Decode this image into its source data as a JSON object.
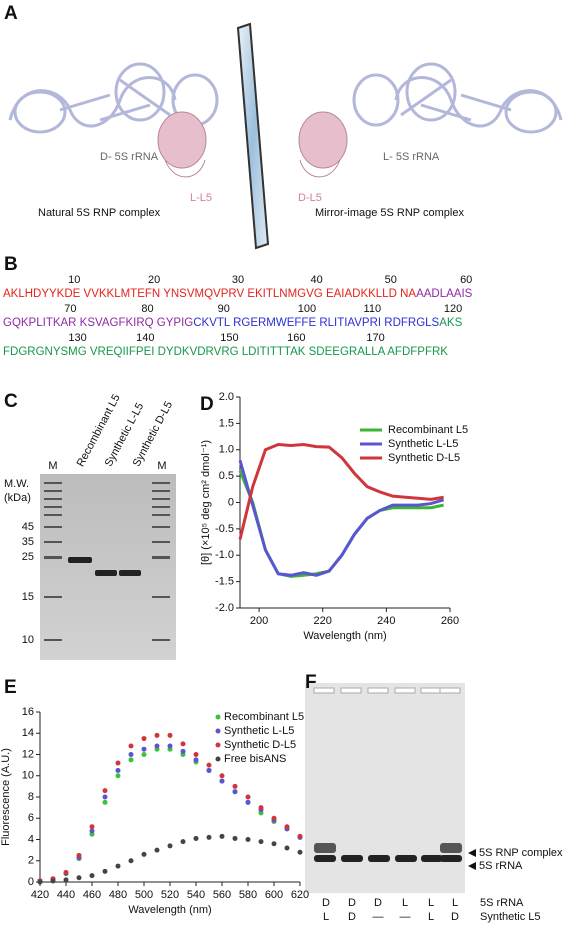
{
  "panel_labels": [
    "A",
    "B",
    "C",
    "D",
    "E",
    "F"
  ],
  "panel_a": {
    "left_rna": "D- 5S rRNA",
    "left_protein": "L-L5",
    "left_caption": "Natural 5S RNP complex",
    "right_rna": "L- 5S rRNA",
    "right_protein": "D-L5",
    "right_caption": "Mirror-image 5S RNP complex"
  },
  "sequence": {
    "rows": [
      {
        "numbers": [
          10,
          20,
          30,
          40,
          50,
          60
        ],
        "segments": [
          {
            "text": "AKLHDYYKDE VVKKLMTEFN YNSVMQVPRV EKITLNMGVG EAIADKKLLD NA",
            "color": "#e3241d"
          },
          {
            "text": "AADLAAIS",
            "color": "#8f2aa6"
          }
        ]
      },
      {
        "numbers": [
          70,
          80,
          90,
          100,
          110,
          120
        ],
        "segments": [
          {
            "text": "GQKPLITKAR KSVAGFKIRQ GYPIG",
            "color": "#8f2aa6"
          },
          {
            "text": "CKVTL RGERMWEFFE RLITIAVPRI RDFRGLS",
            "color": "#2a2fd6"
          },
          {
            "text": "AKS",
            "color": "#17984a"
          }
        ]
      },
      {
        "numbers": [
          130,
          140,
          150,
          160,
          170
        ],
        "segments": [
          {
            "text": "FDGRGNYSMG VREQIIFPEI DYDKVDRVRG LDITITTTAK SDEEGRALLA AFDFPFRK",
            "color": "#17984a"
          }
        ]
      }
    ]
  },
  "gel_c": {
    "lanes": [
      "M",
      "Recombinant L5",
      "Synthetic L-L5",
      "Synthetic D-L5",
      "M"
    ],
    "mw_label": [
      "M.W.",
      "(kDa)"
    ],
    "markers": [
      45,
      35,
      25,
      15,
      10
    ]
  },
  "chart_data": [
    {
      "type": "line",
      "y_label": "[θ] (×10⁵ deg cm² dmol⁻¹)",
      "x_label": "Wavelength (nm)",
      "x": [
        194,
        198,
        202,
        206,
        210,
        214,
        218,
        222,
        226,
        230,
        234,
        238,
        242,
        246,
        250,
        254,
        258
      ],
      "series": [
        {
          "name": "Recombinant L5",
          "color": "#3cb534",
          "values": [
            0.6,
            0.0,
            -0.9,
            -1.35,
            -1.4,
            -1.38,
            -1.35,
            -1.3,
            -1.0,
            -0.6,
            -0.3,
            -0.15,
            -0.1,
            -0.1,
            -0.1,
            -0.1,
            -0.05
          ]
        },
        {
          "name": "Synthetic L-L5",
          "color": "#5a55d2",
          "values": [
            0.8,
            -0.05,
            -0.9,
            -1.35,
            -1.38,
            -1.33,
            -1.38,
            -1.3,
            -1.0,
            -0.6,
            -0.3,
            -0.15,
            -0.05,
            -0.05,
            -0.05,
            -0.02,
            0.05
          ]
        },
        {
          "name": "Synthetic D-L5",
          "color": "#d0353c",
          "values": [
            -0.7,
            0.3,
            1.0,
            1.1,
            1.08,
            1.1,
            1.06,
            1.05,
            0.85,
            0.55,
            0.3,
            0.2,
            0.12,
            0.1,
            0.08,
            0.06,
            0.1
          ]
        }
      ],
      "xlim": [
        194,
        260
      ],
      "xticks": [
        200,
        220,
        240,
        260
      ],
      "ylim": [
        -2,
        2
      ],
      "yticks": [
        {
          "value": 2,
          "label": "2.0"
        },
        1.5,
        {
          "value": 1,
          "label": "1.0"
        },
        0.5,
        0,
        -0.5,
        {
          "value": -1,
          "label": "-1.0"
        },
        -1.5,
        {
          "value": -2,
          "label": "-2.0"
        }
      ],
      "legend": "upper right"
    },
    {
      "type": "scatter",
      "y_label": "Fluorescence (A.U.)",
      "x_label": "Wavelength (nm)",
      "x": [
        420,
        430,
        440,
        450,
        460,
        470,
        480,
        490,
        500,
        510,
        520,
        530,
        540,
        550,
        560,
        570,
        580,
        590,
        600,
        610,
        620
      ],
      "series": [
        {
          "name": "Recombinant L5",
          "color": "#3cc13a",
          "values": [
            0.1,
            0.3,
            0.8,
            2.2,
            4.5,
            7.5,
            10,
            11.5,
            12,
            12.5,
            12.5,
            12,
            11.3,
            10.5,
            9.5,
            8.5,
            7.5,
            6.5,
            5.7,
            5,
            4.2
          ]
        },
        {
          "name": "Synthetic L-L5",
          "color": "#5a55d2",
          "values": [
            0.1,
            0.3,
            0.8,
            2.3,
            4.8,
            8,
            10.5,
            12,
            12.5,
            12.8,
            12.8,
            12.3,
            11.5,
            10.5,
            9.5,
            8.5,
            7.5,
            6.8,
            5.8,
            5,
            4.2
          ]
        },
        {
          "name": "Synthetic D-L5",
          "color": "#d0353c",
          "values": [
            0.1,
            0.3,
            0.9,
            2.5,
            5.2,
            8.6,
            11.2,
            12.8,
            13.5,
            13.8,
            13.8,
            13,
            12,
            11,
            10,
            9,
            8,
            7,
            6,
            5.2,
            4.3
          ]
        },
        {
          "name": "Free bisANS",
          "color": "#444444",
          "values": [
            0,
            0.1,
            0.2,
            0.4,
            0.6,
            1,
            1.5,
            2,
            2.6,
            3,
            3.4,
            3.8,
            4.1,
            4.2,
            4.3,
            4.1,
            4,
            3.8,
            3.6,
            3.2,
            2.8
          ]
        }
      ],
      "xlim": [
        420,
        620
      ],
      "xticks": [
        420,
        440,
        460,
        480,
        500,
        520,
        540,
        560,
        580,
        600,
        620
      ],
      "ylim": [
        0,
        16
      ],
      "yticks": [
        0,
        2,
        4,
        6,
        8,
        10,
        12,
        14,
        16
      ],
      "legend": "upper right"
    }
  ],
  "gel_f": {
    "annotations": [
      "5S RNP complex",
      "5S rRNA"
    ],
    "rows": [
      {
        "label": "5S rRNA",
        "cells": [
          "D",
          "D",
          "D",
          "L",
          "L",
          "L"
        ]
      },
      {
        "label": "Synthetic L5",
        "cells": [
          "L",
          "D",
          "—",
          "—",
          "L",
          "D"
        ]
      }
    ]
  }
}
